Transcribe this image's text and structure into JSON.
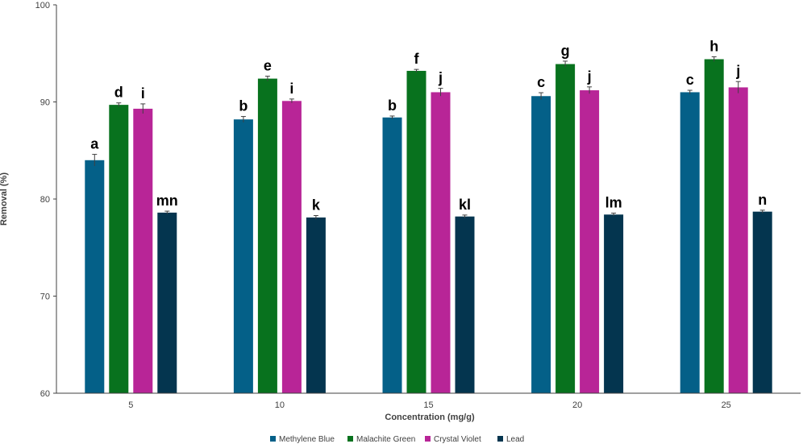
{
  "chart_data": {
    "type": "bar",
    "categories": [
      "5",
      "10",
      "15",
      "20",
      "25"
    ],
    "series": [
      {
        "name": "Methylene Blue",
        "color": "#046088",
        "values": [
          84.0,
          88.2,
          88.4,
          90.6,
          91.0
        ],
        "errors": [
          0.6,
          0.3,
          0.15,
          0.35,
          0.2
        ],
        "labels": [
          "a",
          "b",
          "b",
          "c",
          "c"
        ]
      },
      {
        "name": "Malachite Green",
        "color": "#08721e",
        "values": [
          89.7,
          92.4,
          93.2,
          93.9,
          94.4
        ],
        "errors": [
          0.2,
          0.25,
          0.15,
          0.3,
          0.25
        ],
        "labels": [
          "d",
          "e",
          "f",
          "g",
          "h"
        ]
      },
      {
        "name": "Crystal Violet",
        "color": "#b82597",
        "values": [
          89.3,
          90.1,
          91.0,
          91.2,
          91.5
        ],
        "errors": [
          0.5,
          0.2,
          0.4,
          0.35,
          0.6
        ],
        "labels": [
          "i",
          "i",
          "j",
          "j",
          "j"
        ]
      },
      {
        "name": "Lead",
        "color": "#04354f",
        "values": [
          78.6,
          78.1,
          78.2,
          78.4,
          78.7
        ],
        "errors": [
          0.15,
          0.2,
          0.15,
          0.15,
          0.15
        ],
        "labels": [
          "mn",
          "k",
          "kl",
          "lm",
          "n"
        ]
      }
    ],
    "xlabel": "Concentration (mg/g)",
    "ylabel": "Removal (%)",
    "ylim": [
      60,
      100
    ],
    "yticks": [
      60,
      70,
      80,
      90,
      100
    ],
    "grid": false,
    "legend_position": "bottom-center"
  }
}
